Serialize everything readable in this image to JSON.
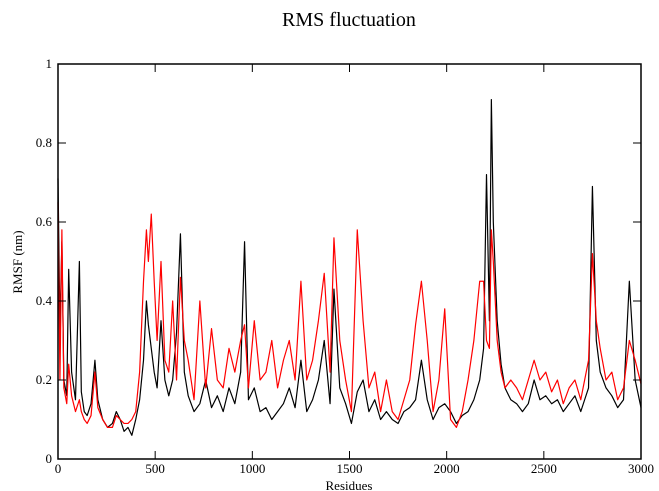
{
  "chart_data": {
    "type": "line",
    "title": "RMS fluctuation",
    "xlabel": "Residues",
    "ylabel": "RMSF (nm)",
    "xlim": [
      0,
      3000
    ],
    "ylim": [
      0,
      1
    ],
    "xticks": [
      0,
      500,
      1000,
      1500,
      2000,
      2500,
      3000
    ],
    "yticks": [
      0,
      0.2,
      0.4,
      0.6,
      0.8,
      1
    ],
    "grid": false,
    "legend": "none",
    "series": [
      {
        "color": "#000000",
        "x": [
          0,
          10,
          20,
          30,
          45,
          55,
          70,
          90,
          110,
          120,
          135,
          150,
          170,
          190,
          205,
          230,
          255,
          280,
          300,
          320,
          340,
          360,
          380,
          400,
          420,
          440,
          455,
          465,
          480,
          495,
          510,
          530,
          550,
          570,
          590,
          610,
          630,
          650,
          670,
          700,
          730,
          760,
          790,
          820,
          850,
          880,
          910,
          940,
          960,
          980,
          1010,
          1040,
          1070,
          1100,
          1130,
          1160,
          1190,
          1220,
          1250,
          1280,
          1310,
          1340,
          1370,
          1400,
          1420,
          1450,
          1480,
          1510,
          1540,
          1570,
          1600,
          1630,
          1660,
          1690,
          1720,
          1750,
          1780,
          1810,
          1840,
          1870,
          1900,
          1930,
          1960,
          1990,
          2020,
          2050,
          2080,
          2110,
          2140,
          2170,
          2190,
          2205,
          2220,
          2230,
          2240,
          2260,
          2280,
          2300,
          2330,
          2360,
          2390,
          2420,
          2450,
          2480,
          2510,
          2540,
          2570,
          2600,
          2630,
          2660,
          2690,
          2710,
          2730,
          2750,
          2770,
          2790,
          2820,
          2850,
          2880,
          2910,
          2940,
          2970,
          3000
        ],
        "values": [
          0.71,
          0.33,
          0.55,
          0.2,
          0.16,
          0.48,
          0.22,
          0.15,
          0.5,
          0.17,
          0.12,
          0.11,
          0.14,
          0.25,
          0.15,
          0.1,
          0.08,
          0.09,
          0.12,
          0.1,
          0.07,
          0.08,
          0.06,
          0.1,
          0.15,
          0.25,
          0.4,
          0.34,
          0.28,
          0.22,
          0.18,
          0.35,
          0.2,
          0.16,
          0.2,
          0.32,
          0.57,
          0.22,
          0.16,
          0.12,
          0.14,
          0.2,
          0.13,
          0.16,
          0.12,
          0.18,
          0.14,
          0.22,
          0.55,
          0.15,
          0.18,
          0.12,
          0.13,
          0.1,
          0.12,
          0.14,
          0.18,
          0.13,
          0.25,
          0.12,
          0.15,
          0.2,
          0.3,
          0.14,
          0.43,
          0.18,
          0.14,
          0.09,
          0.17,
          0.2,
          0.12,
          0.15,
          0.1,
          0.12,
          0.1,
          0.09,
          0.12,
          0.13,
          0.15,
          0.25,
          0.15,
          0.1,
          0.13,
          0.14,
          0.12,
          0.09,
          0.11,
          0.12,
          0.15,
          0.2,
          0.28,
          0.72,
          0.35,
          0.91,
          0.6,
          0.35,
          0.24,
          0.18,
          0.15,
          0.14,
          0.12,
          0.14,
          0.2,
          0.15,
          0.16,
          0.14,
          0.15,
          0.12,
          0.14,
          0.16,
          0.12,
          0.15,
          0.18,
          0.69,
          0.3,
          0.22,
          0.18,
          0.16,
          0.13,
          0.15,
          0.45,
          0.2,
          0.13
        ]
      },
      {
        "color": "#ff0000",
        "x": [
          0,
          10,
          20,
          30,
          45,
          55,
          70,
          90,
          110,
          120,
          135,
          150,
          170,
          190,
          205,
          230,
          255,
          280,
          300,
          320,
          340,
          360,
          380,
          400,
          420,
          440,
          455,
          465,
          480,
          495,
          510,
          530,
          550,
          570,
          590,
          610,
          630,
          650,
          670,
          700,
          730,
          760,
          790,
          820,
          850,
          880,
          910,
          940,
          960,
          980,
          1010,
          1040,
          1070,
          1100,
          1130,
          1160,
          1190,
          1220,
          1250,
          1280,
          1310,
          1340,
          1370,
          1400,
          1420,
          1450,
          1480,
          1510,
          1540,
          1570,
          1600,
          1630,
          1660,
          1690,
          1720,
          1750,
          1780,
          1810,
          1840,
          1870,
          1900,
          1930,
          1960,
          1990,
          2020,
          2050,
          2080,
          2110,
          2140,
          2170,
          2190,
          2205,
          2220,
          2230,
          2240,
          2260,
          2280,
          2300,
          2330,
          2360,
          2390,
          2420,
          2450,
          2480,
          2510,
          2540,
          2570,
          2600,
          2630,
          2660,
          2690,
          2710,
          2730,
          2750,
          2770,
          2790,
          2820,
          2850,
          2880,
          2910,
          2940,
          2970,
          3000
        ],
        "values": [
          0.65,
          0.2,
          0.58,
          0.18,
          0.14,
          0.24,
          0.16,
          0.12,
          0.15,
          0.12,
          0.1,
          0.09,
          0.11,
          0.22,
          0.13,
          0.1,
          0.08,
          0.08,
          0.11,
          0.1,
          0.09,
          0.09,
          0.1,
          0.12,
          0.22,
          0.45,
          0.58,
          0.5,
          0.62,
          0.45,
          0.3,
          0.5,
          0.25,
          0.22,
          0.4,
          0.2,
          0.46,
          0.3,
          0.25,
          0.15,
          0.4,
          0.18,
          0.33,
          0.2,
          0.18,
          0.28,
          0.22,
          0.3,
          0.34,
          0.18,
          0.35,
          0.2,
          0.22,
          0.3,
          0.18,
          0.25,
          0.3,
          0.2,
          0.45,
          0.2,
          0.25,
          0.35,
          0.47,
          0.22,
          0.56,
          0.3,
          0.2,
          0.12,
          0.58,
          0.35,
          0.18,
          0.22,
          0.12,
          0.2,
          0.12,
          0.1,
          0.15,
          0.2,
          0.34,
          0.45,
          0.3,
          0.12,
          0.2,
          0.38,
          0.1,
          0.08,
          0.12,
          0.2,
          0.3,
          0.45,
          0.45,
          0.3,
          0.28,
          0.58,
          0.5,
          0.3,
          0.22,
          0.18,
          0.2,
          0.18,
          0.15,
          0.2,
          0.25,
          0.2,
          0.22,
          0.17,
          0.2,
          0.14,
          0.18,
          0.2,
          0.15,
          0.2,
          0.25,
          0.52,
          0.35,
          0.28,
          0.2,
          0.22,
          0.15,
          0.18,
          0.3,
          0.25,
          0.19
        ]
      }
    ]
  }
}
